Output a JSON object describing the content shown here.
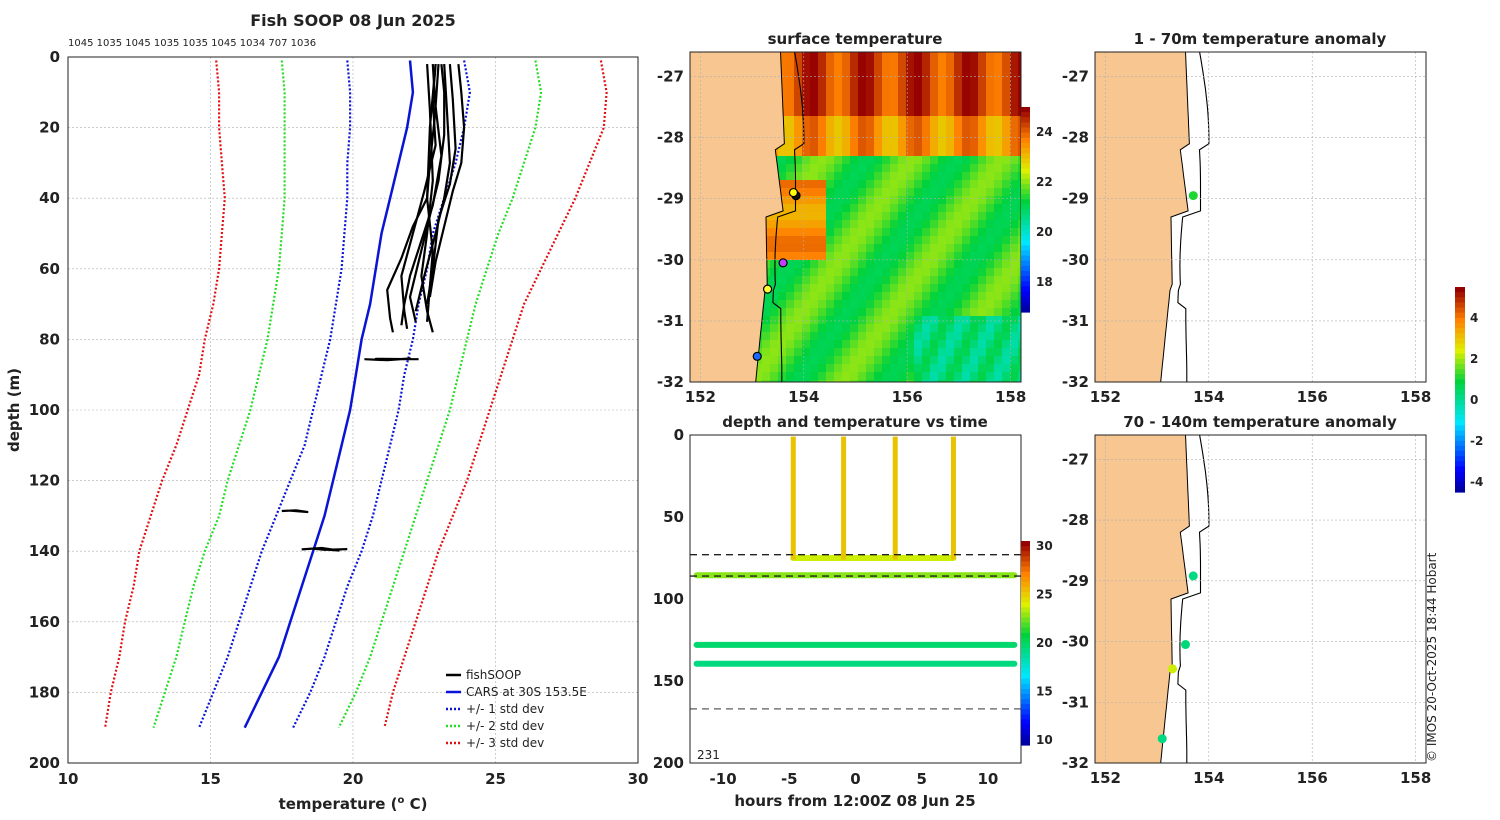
{
  "colors": {
    "land": "#f8c690",
    "coast": "#000000",
    "grid": "#b0b0b0",
    "blue": "#0a14d6",
    "green": "#22dd22",
    "red": "#e01010",
    "black": "#000000"
  },
  "chart_data": [
    {
      "id": "profile",
      "type": "line",
      "title": "Fish SOOP 08 Jun 2025",
      "profile_ids_label": "1045 1035 1045 1035 1035 1045 1034 707 1036",
      "xlabel": "temperature (",
      "xlabel_sup": "o",
      "xlabel_end": " C)",
      "ylabel": "depth (m)",
      "xlim": [
        10,
        30
      ],
      "ylim": [
        0,
        200
      ],
      "xticks": [
        "10",
        "15",
        "20",
        "25",
        "30"
      ],
      "yticks": [
        "0",
        "20",
        "40",
        "60",
        "80",
        "100",
        "120",
        "140",
        "160",
        "180",
        "200"
      ],
      "legend": [
        "fishSOOP",
        "CARS at 30S 153.5E",
        "+/- 1 std dev",
        "+/- 2 std dev",
        "+/- 3 std dev"
      ],
      "legend_position": "bottom-right",
      "cars_mean": {
        "depth": [
          1,
          10,
          20,
          30,
          40,
          50,
          60,
          70,
          80,
          90,
          100,
          110,
          120,
          130,
          140,
          150,
          160,
          170,
          180,
          190
        ],
        "temp": [
          22.0,
          22.1,
          21.9,
          21.6,
          21.3,
          21.0,
          20.8,
          20.6,
          20.3,
          20.1,
          19.9,
          19.6,
          19.3,
          19.0,
          18.6,
          18.2,
          17.8,
          17.4,
          16.8,
          16.2
        ]
      },
      "std_plus_1": [
        23.9,
        24.1,
        23.9,
        23.6,
        23.2,
        22.8,
        22.6,
        22.3,
        22.1,
        21.8,
        21.6,
        21.3,
        21.0,
        20.7,
        20.3,
        19.8,
        19.4,
        19.0,
        18.5,
        17.9
      ],
      "std_minus_1": [
        19.8,
        19.9,
        19.9,
        19.8,
        19.8,
        19.7,
        19.6,
        19.4,
        19.2,
        18.9,
        18.6,
        18.3,
        17.8,
        17.3,
        16.8,
        16.4,
        16.0,
        15.6,
        15.1,
        14.6
      ],
      "std_plus_2": [
        26.4,
        26.6,
        26.4,
        26.0,
        25.6,
        25.1,
        24.7,
        24.3,
        24.0,
        23.7,
        23.4,
        23.0,
        22.6,
        22.2,
        21.8,
        21.4,
        21.0,
        20.6,
        20.1,
        19.5
      ],
      "std_minus_2": [
        17.5,
        17.6,
        17.6,
        17.6,
        17.6,
        17.5,
        17.4,
        17.2,
        17.0,
        16.7,
        16.4,
        16.0,
        15.6,
        15.3,
        14.8,
        14.4,
        14.1,
        13.8,
        13.4,
        13.0
      ],
      "std_plus_3": [
        28.7,
        28.9,
        28.8,
        28.3,
        27.8,
        27.2,
        26.6,
        26.0,
        25.6,
        25.2,
        24.8,
        24.4,
        24.0,
        23.5,
        23.0,
        22.6,
        22.2,
        21.8,
        21.4,
        21.1
      ],
      "std_minus_3": [
        15.2,
        15.3,
        15.3,
        15.4,
        15.5,
        15.4,
        15.3,
        15.1,
        14.8,
        14.6,
        14.2,
        13.8,
        13.3,
        12.9,
        12.5,
        12.3,
        12.0,
        11.8,
        11.5,
        11.3
      ],
      "fish_profiles": [
        {
          "temp": [
            22.8,
            22.9,
            22.7,
            22.6,
            22.1,
            21.7,
            21.2,
            21.3,
            21.4
          ],
          "depth": [
            2,
            15,
            30,
            40,
            48,
            57,
            66,
            74,
            78
          ]
        },
        {
          "temp": [
            22.9,
            22.8,
            22.9,
            22.5,
            22.1,
            21.7,
            21.8,
            21.9
          ],
          "depth": [
            2,
            12,
            25,
            38,
            50,
            62,
            72,
            77
          ]
        },
        {
          "temp": [
            23.0,
            22.9,
            23.1,
            22.8,
            22.4,
            22.0,
            21.8,
            21.7
          ],
          "depth": [
            2,
            14,
            28,
            42,
            52,
            62,
            70,
            76
          ]
        },
        {
          "temp": [
            23.1,
            23.2,
            23.2,
            23.0,
            22.7,
            22.3,
            22.0,
            22.2
          ],
          "depth": [
            2,
            10,
            22,
            35,
            45,
            58,
            68,
            75
          ]
        },
        {
          "temp": [
            23.2,
            23.3,
            23.4,
            23.2,
            22.9,
            22.5,
            22.2
          ],
          "depth": [
            2,
            16,
            30,
            40,
            50,
            62,
            72
          ]
        },
        {
          "temp": [
            23.4,
            23.5,
            23.6,
            23.4,
            23.0,
            22.8,
            22.6
          ],
          "depth": [
            2,
            12,
            26,
            36,
            46,
            60,
            70
          ]
        },
        {
          "temp": [
            23.7,
            23.8,
            23.9,
            23.8,
            23.5,
            23.2,
            22.9,
            22.7
          ],
          "depth": [
            2,
            10,
            20,
            30,
            38,
            48,
            58,
            68
          ]
        },
        {
          "temp": [
            22.9,
            22.7,
            22.6,
            22.8,
            22.7,
            22.6
          ],
          "depth": [
            2,
            20,
            40,
            55,
            65,
            75
          ]
        },
        {
          "temp": [
            22.6,
            22.7,
            22.8,
            22.6,
            22.4,
            22.6,
            22.8
          ],
          "depth": [
            2,
            15,
            35,
            50,
            62,
            72,
            78
          ]
        },
        {
          "temp": [
            20.4,
            21.2,
            22.0,
            21.5,
            20.8,
            22.3
          ],
          "depth": [
            85.6,
            85.9,
            85.4,
            85.7,
            85.5,
            85.6
          ]
        },
        {
          "temp": [
            17.5,
            18.0,
            18.4,
            17.8,
            18.2
          ],
          "depth": [
            128.6,
            128.4,
            128.9,
            128.5,
            128.7
          ]
        },
        {
          "temp": [
            18.2,
            18.9,
            19.5,
            18.6,
            19.0,
            19.8
          ],
          "depth": [
            139.5,
            139.1,
            139.8,
            139.3,
            139.6,
            139.4
          ]
        }
      ]
    },
    {
      "id": "sst_map",
      "type": "heatmap",
      "title": "surface temperature",
      "xlim": [
        151.8,
        158.2
      ],
      "ylim": [
        -32,
        -26.6
      ],
      "xticks": [
        "152",
        "154",
        "156",
        "158"
      ],
      "yticks": [
        "-27",
        "-28",
        "-29",
        "-30",
        "-31",
        "-32"
      ],
      "colorbar_ticks": [
        "24",
        "22",
        "20",
        "18"
      ],
      "colorbar_range": [
        16.8,
        25.0
      ],
      "stations": [
        {
          "lon": 153.85,
          "lat": -28.95,
          "color": "#111111"
        },
        {
          "lon": 153.8,
          "lat": -28.9,
          "color": "#ffff00"
        },
        {
          "lon": 153.6,
          "lat": -30.05,
          "color": "#c040ff"
        },
        {
          "lon": 153.3,
          "lat": -30.48,
          "color": "#ffff33"
        },
        {
          "lon": 153.1,
          "lat": -31.58,
          "color": "#1a66ff"
        }
      ]
    },
    {
      "id": "depth_time",
      "type": "scatter",
      "title": "depth and temperature vs time",
      "xlabel": "hours from 12:00Z 08 Jun 25",
      "xlim": [
        -12.5,
        12.5
      ],
      "ylim": [
        0,
        200
      ],
      "xticks": [
        "-10",
        "-5",
        "0",
        "5",
        "10"
      ],
      "yticks": [
        "0",
        "50",
        "100",
        "150",
        "200"
      ],
      "colorbar_ticks": [
        "30",
        "25",
        "20",
        "15",
        "10"
      ],
      "colorbar_range": [
        9.5,
        30.5
      ],
      "annotation": "231",
      "spikes_hours": [
        -4.7,
        -0.9,
        3.0,
        7.4
      ],
      "tracks": [
        {
          "depth": 85.5,
          "hour_start": -12,
          "hour_end": 12,
          "temp": 23.0
        },
        {
          "depth": 128,
          "hour_start": -12,
          "hour_end": 12,
          "temp": 20.0
        },
        {
          "depth": 139.5,
          "hour_start": -12,
          "hour_end": 12,
          "temp": 19.6
        },
        {
          "depth": 75,
          "hour_start": -4.7,
          "hour_end": 7.4,
          "temp": 24.0
        }
      ],
      "dashed_lines_depth": [
        73,
        86,
        167
      ]
    },
    {
      "id": "anom_shallow",
      "type": "scatter",
      "title": "1 - 70m temperature anomaly",
      "xlim": [
        151.8,
        158.2
      ],
      "ylim": [
        -32,
        -26.6
      ],
      "xticks": [
        "152",
        "154",
        "156",
        "158"
      ],
      "yticks": [
        "-27",
        "-28",
        "-29",
        "-30",
        "-31",
        "-32"
      ],
      "points": [
        {
          "lon": 153.7,
          "lat": -28.95,
          "anomaly": 1.2
        }
      ]
    },
    {
      "id": "anom_deep",
      "type": "scatter",
      "title": "70 - 140m temperature anomaly",
      "xlim": [
        151.8,
        158.2
      ],
      "ylim": [
        -32,
        -26.6
      ],
      "xticks": [
        "152",
        "154",
        "156",
        "158"
      ],
      "yticks": [
        "-27",
        "-28",
        "-29",
        "-30",
        "-31",
        "-32"
      ],
      "points": [
        {
          "lon": 153.7,
          "lat": -28.92,
          "anomaly": 0.3
        },
        {
          "lon": 153.55,
          "lat": -30.05,
          "anomaly": 0.4
        },
        {
          "lon": 153.3,
          "lat": -30.45,
          "anomaly": 2.4
        },
        {
          "lon": 153.1,
          "lat": -31.6,
          "anomaly": 0.3
        }
      ],
      "colorbar_ticks": [
        "4",
        "2",
        "0",
        "-2",
        "-4"
      ],
      "colorbar_range": [
        -4.5,
        5.5
      ]
    }
  ],
  "credit": "© IMOS 20-Oct-2025 18:44 Hobart"
}
